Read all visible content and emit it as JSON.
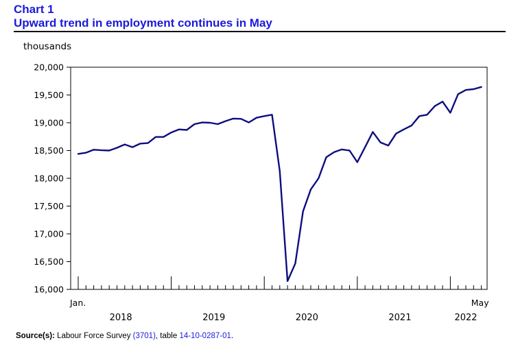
{
  "header": {
    "chart_number": "Chart 1",
    "title": "Upward trend in employment continues in May"
  },
  "colors": {
    "title": "#1a1ad9",
    "line": "#0d0d80",
    "axis": "#000000",
    "link": "#1a1ad9"
  },
  "chart_data": {
    "type": "line",
    "title": "Upward trend in employment continues in May",
    "ylabel": "thousands",
    "xlabel": "",
    "ylim": [
      16000,
      20000
    ],
    "yticks": [
      16000,
      16500,
      17000,
      17500,
      18000,
      18500,
      19000,
      19500,
      20000
    ],
    "ytick_labels": [
      "16,000",
      "16,500",
      "17,000",
      "17,500",
      "18,000",
      "18,500",
      "19,000",
      "19,500",
      "20,000"
    ],
    "grid": false,
    "x_start": "Jan. 2018",
    "x_end": "May 2022",
    "x_start_label": "Jan.",
    "x_end_label": "May",
    "year_labels": [
      "2018",
      "2019",
      "2020",
      "2021",
      "2022"
    ],
    "series": [
      {
        "name": "Employment",
        "values": [
          18440,
          18460,
          18515,
          18505,
          18500,
          18550,
          18610,
          18560,
          18625,
          18635,
          18745,
          18745,
          18825,
          18880,
          18870,
          18975,
          19005,
          19000,
          18975,
          19030,
          19075,
          19070,
          19005,
          19090,
          19120,
          19145,
          18130,
          16150,
          16465,
          17405,
          17800,
          18000,
          18380,
          18470,
          18520,
          18500,
          18290,
          18560,
          18835,
          18645,
          18590,
          18805,
          18880,
          18950,
          19120,
          19145,
          19300,
          19380,
          19180,
          19515,
          19590,
          19605,
          19645
        ]
      }
    ]
  },
  "footer": {
    "source_label": "Source(s):",
    "text_1": " Labour Force Survey ",
    "link_1": "(3701)",
    "text_2": ", table ",
    "link_2": "14-10-0287-01",
    "text_3": "."
  }
}
